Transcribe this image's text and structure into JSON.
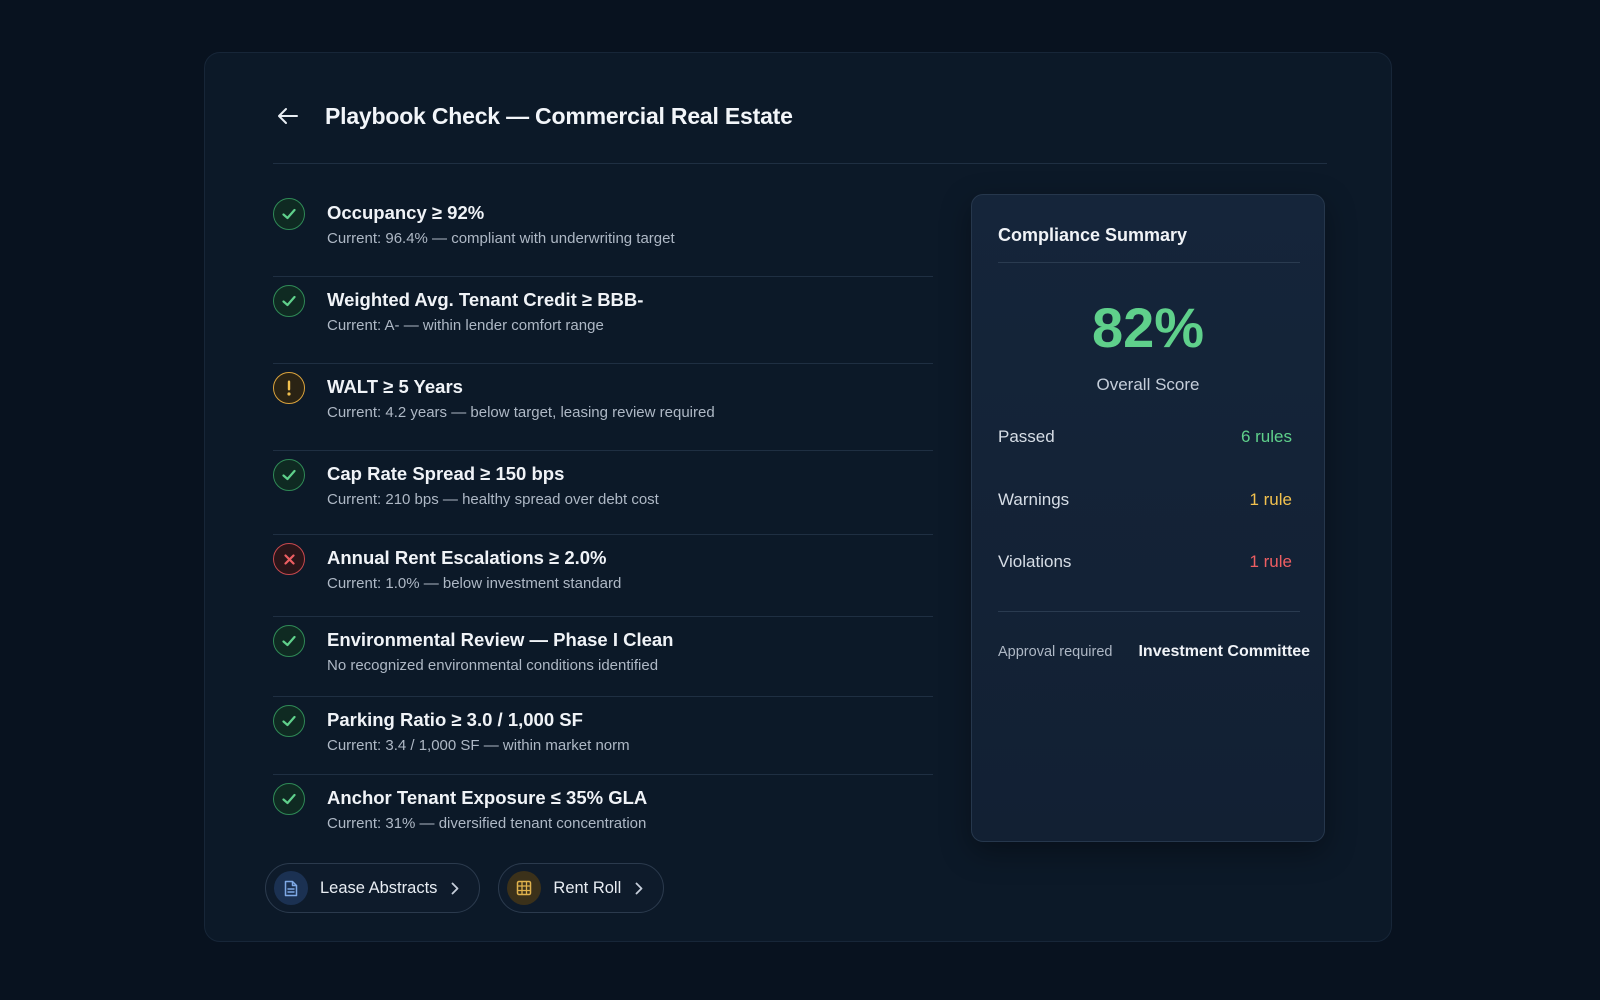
{
  "header": {
    "title": "Playbook Check — Commercial Real Estate",
    "back_icon": "arrow-left-icon"
  },
  "rules": [
    {
      "title": "Occupancy ≥ 92%",
      "detail": "Current: 96.4% — compliant with underwriting target",
      "status": "pass"
    },
    {
      "title": "Weighted Avg. Tenant Credit ≥ BBB-",
      "detail": "Current: A- — within lender comfort range",
      "status": "pass"
    },
    {
      "title": "WALT ≥ 5 Years",
      "detail": "Current: 4.2 years — below target, leasing review required",
      "status": "warn"
    },
    {
      "title": "Cap Rate Spread ≥ 150 bps",
      "detail": "Current: 210 bps — healthy spread over debt cost",
      "status": "pass"
    },
    {
      "title": "Annual Rent Escalations ≥ 2.0%",
      "detail": "Current: 1.0% — below investment standard",
      "status": "fail"
    },
    {
      "title": "Environmental Review — Phase I Clean",
      "detail": "No recognized environmental conditions identified",
      "status": "pass"
    },
    {
      "title": "Parking Ratio ≥ 3.0 / 1,000 SF",
      "detail": "Current: 3.4 / 1,000 SF — within market norm",
      "status": "pass"
    },
    {
      "title": "Anchor Tenant Exposure ≤ 35% GLA",
      "detail": "Current: 31% — diversified tenant concentration",
      "status": "pass"
    }
  ],
  "actions": [
    {
      "label": "Lease Abstracts",
      "icon": "document-icon"
    },
    {
      "label": "Rent Roll",
      "icon": "table-icon"
    }
  ],
  "summary": {
    "title": "Compliance Summary",
    "score": "82%",
    "score_label": "Overall Score",
    "stats": [
      {
        "label": "Passed",
        "value": "6 rules"
      },
      {
        "label": "Warnings",
        "value": "1 rule"
      },
      {
        "label": "Violations",
        "value": "1 rule"
      }
    ],
    "approval_label": "Approval required",
    "approval_value": "Investment Committee"
  },
  "colors": {
    "pass": "#5fd08b",
    "warn": "#f2c14e",
    "fail": "#ee5e62",
    "background": "#08121f"
  }
}
